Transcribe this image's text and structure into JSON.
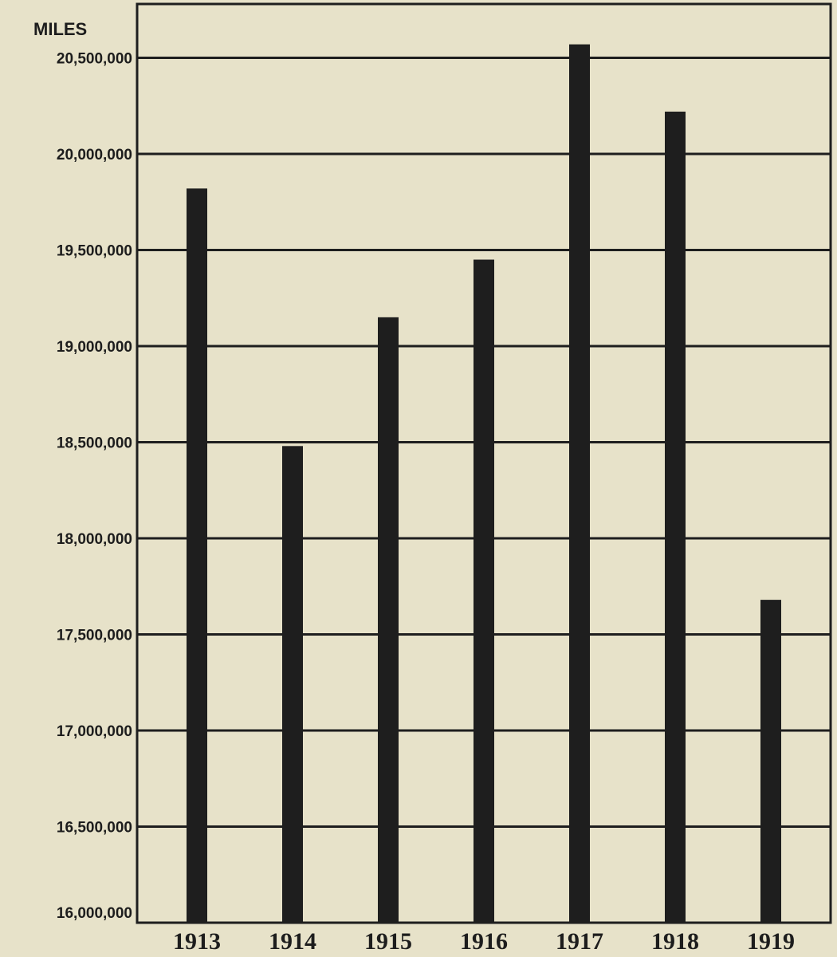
{
  "chart_data": {
    "type": "bar",
    "unit_label": "MILES",
    "categories": [
      "1913",
      "1914",
      "1915",
      "1916",
      "1917",
      "1918",
      "1919"
    ],
    "values": [
      19820000,
      18480000,
      19150000,
      19450000,
      20570000,
      20220000,
      17680000
    ],
    "y_ticks": [
      "16,000,000",
      "16,500,000",
      "17,000,000",
      "17,500,000",
      "18,000,000",
      "18,500,000",
      "19,000,000",
      "19,500,000",
      "20,000,000",
      "20,500,000"
    ],
    "y_tick_values": [
      16000000,
      16500000,
      17000000,
      17500000,
      18000000,
      18500000,
      19000000,
      19500000,
      20000000,
      20500000
    ],
    "ylim": [
      16000000,
      20780000
    ],
    "grid": true,
    "colors": {
      "bar": "#1e1e1e",
      "grid": "#1e1e1e",
      "background": "#e7e2c9"
    }
  }
}
